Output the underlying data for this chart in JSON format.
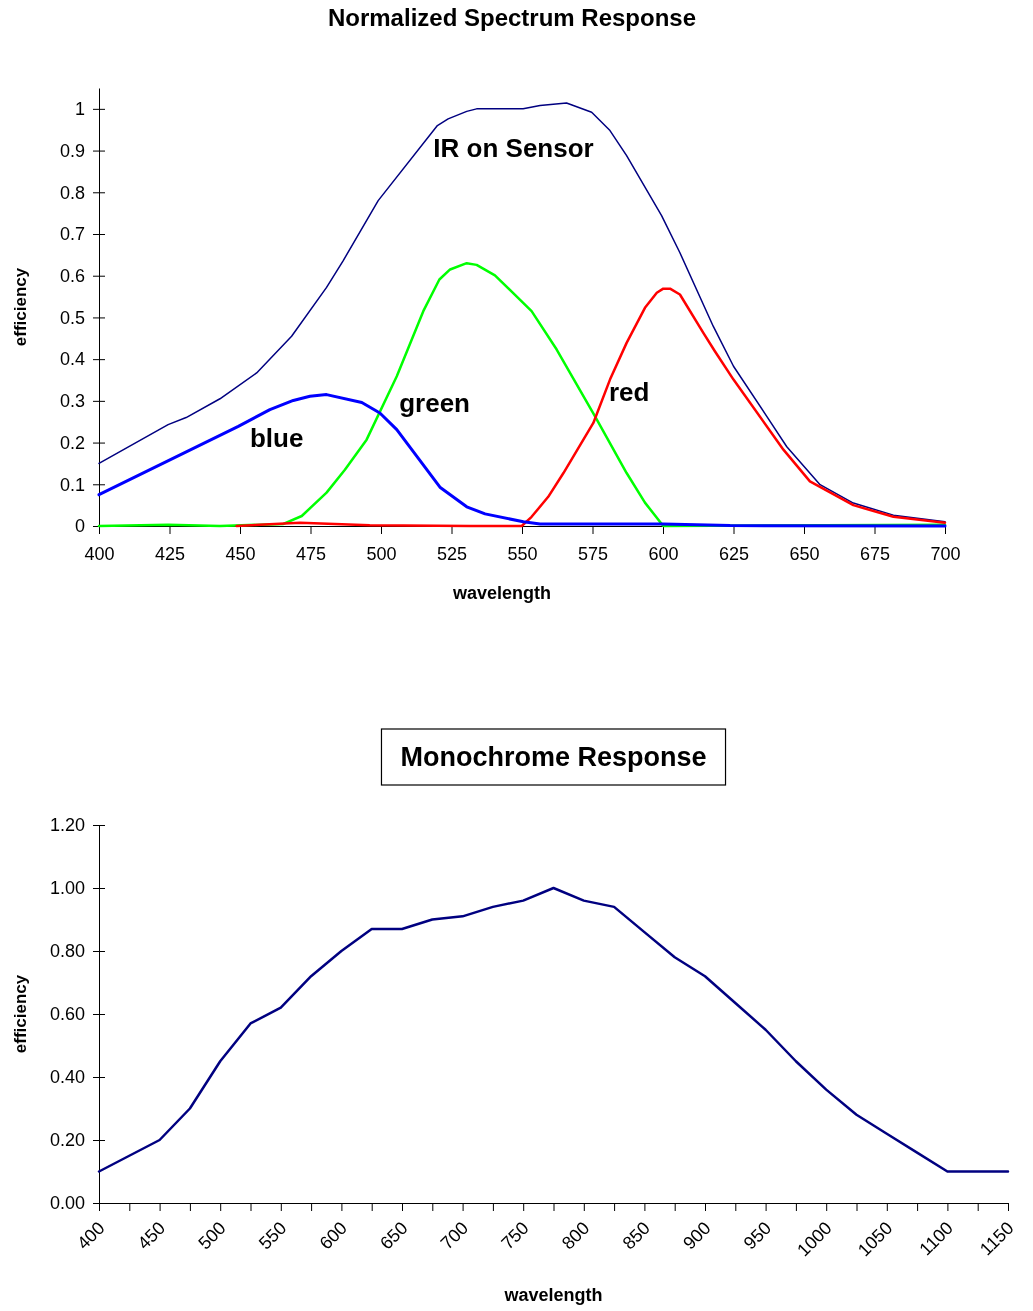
{
  "chart_data": [
    {
      "type": "line",
      "title": "Normalized Spectrum Response",
      "xlabel": "wavelength",
      "ylabel": "efficiency",
      "xlim": [
        400,
        700
      ],
      "xticks": [
        400,
        425,
        450,
        475,
        500,
        525,
        550,
        575,
        600,
        625,
        650,
        675,
        700
      ],
      "ylim": [
        0,
        1.05
      ],
      "yticks": [
        0,
        0.1,
        0.2,
        0.3,
        0.4,
        0.5,
        0.6,
        0.7,
        0.8,
        0.9,
        1
      ],
      "series": [
        {
          "name": "IR on Sensor",
          "color": "#000080",
          "x": [
            400,
            424.5,
            430.9,
            442.9,
            455.9,
            468.3,
            480.7,
            486.5,
            499,
            520,
            523.8,
            530.4,
            533.9,
            550.4,
            556.4,
            565.8,
            574.7,
            581.2,
            587.1,
            599.5,
            606,
            617.8,
            625,
            636.8,
            643.9,
            655.7,
            667.5,
            681.7,
            700
          ],
          "values": [
            0.15,
            0.243,
            0.26,
            0.305,
            0.367,
            0.455,
            0.572,
            0.635,
            0.78,
            0.96,
            0.976,
            0.994,
            1.0,
            1.0,
            1.008,
            1.014,
            0.992,
            0.948,
            0.888,
            0.744,
            0.655,
            0.479,
            0.383,
            0.263,
            0.19,
            0.099,
            0.055,
            0.026,
            0.01
          ]
        },
        {
          "name": "green",
          "color": "#00ff00",
          "x": [
            400,
            424.5,
            442.9,
            465.4,
            471.9,
            480.7,
            487.2,
            494.9,
            505.6,
            515,
            520.7,
            524.5,
            530.4,
            533.9,
            540.4,
            553.4,
            562.3,
            575.9,
            587.1,
            593.6,
            600.1,
            700
          ],
          "values": [
            0,
            0.003,
            0,
            0.005,
            0.024,
            0.08,
            0.135,
            0.207,
            0.359,
            0.515,
            0.591,
            0.615,
            0.63,
            0.626,
            0.601,
            0.515,
            0.423,
            0.263,
            0.127,
            0.056,
            0,
            0.003
          ]
        },
        {
          "name": "red",
          "color": "#ff0000",
          "x": [
            448.8,
            471.3,
            496,
            531.6,
            549.9,
            553.4,
            559.3,
            564.7,
            575.3,
            581.2,
            587.1,
            593.6,
            597.8,
            600.1,
            602.5,
            606,
            614.3,
            618.4,
            625,
            642.7,
            652.1,
            667.5,
            681.7,
            700
          ],
          "values": [
            0,
            0.008,
            0.002,
            0,
            0,
            0.022,
            0.07,
            0.127,
            0.247,
            0.351,
            0.439,
            0.523,
            0.559,
            0.569,
            0.569,
            0.555,
            0.463,
            0.419,
            0.351,
            0.183,
            0.107,
            0.05,
            0.022,
            0.008
          ]
        },
        {
          "name": "blue",
          "color": "#0000ff",
          "x": [
            400,
            449.4,
            460.6,
            468.9,
            474.8,
            480.7,
            493.2,
            499.6,
            505.6,
            520.9,
            530.4,
            536.9,
            550.5,
            556.4,
            600,
            623.8,
            700
          ],
          "values": [
            0.075,
            0.239,
            0.279,
            0.301,
            0.311,
            0.315,
            0.296,
            0.271,
            0.231,
            0.093,
            0.046,
            0.029,
            0.01,
            0.005,
            0.005,
            0.001,
            0
          ]
        }
      ]
    },
    {
      "type": "line",
      "title": "Monochrome Response",
      "xlabel": "wavelength",
      "ylabel": "efficiency",
      "xlim": [
        400,
        1150
      ],
      "xticks": [
        400,
        {
          "value": 425,
          "label": null
        },
        450,
        {
          "value": 475,
          "label": null
        },
        500,
        {
          "value": 525,
          "label": null
        },
        550,
        {
          "value": 575,
          "label": null
        },
        600,
        {
          "value": 625,
          "label": null
        },
        650,
        {
          "value": 675,
          "label": null
        },
        700,
        {
          "value": 725,
          "label": null
        },
        750,
        {
          "value": 775,
          "label": null
        },
        800,
        {
          "value": 825,
          "label": null
        },
        850,
        {
          "value": 875,
          "label": null
        },
        900,
        {
          "value": 925,
          "label": null
        },
        950,
        {
          "value": 975,
          "label": null
        },
        1000,
        {
          "value": 1025,
          "label": null
        },
        1050,
        {
          "value": 1075,
          "label": null
        },
        1100,
        {
          "value": 1125,
          "label": null
        },
        1150
      ],
      "ylim": [
        0,
        1.2
      ],
      "yticks": [
        {
          "value": 0,
          "label": "0.00"
        },
        {
          "value": 0.2,
          "label": "0.20"
        },
        {
          "value": 0.4,
          "label": "0.40"
        },
        {
          "value": 0.6,
          "label": "0.60"
        },
        {
          "value": 0.8,
          "label": "0.80"
        },
        {
          "value": 1,
          "label": "1.00"
        },
        {
          "value": 1.2,
          "label": "1.20"
        }
      ],
      "x": [
        400,
        425,
        450,
        475,
        500,
        525,
        550,
        575,
        600,
        625,
        650,
        675,
        700,
        725,
        750,
        775,
        800,
        825,
        850,
        875,
        900,
        925,
        950,
        975,
        1000,
        1025,
        1050,
        1075,
        1100,
        1125,
        1150
      ],
      "series": [
        {
          "color": "#000080",
          "values": [
            0.1,
            0.15,
            0.2,
            0.3,
            0.45,
            0.57,
            0.62,
            0.72,
            0.8,
            0.87,
            0.87,
            0.9,
            0.91,
            0.94,
            0.96,
            1.0,
            0.96,
            0.94,
            0.86,
            0.78,
            0.72,
            0.635,
            0.55,
            0.45,
            0.36,
            0.28,
            0.22,
            0.16,
            0.1,
            0.1,
            0.1
          ]
        }
      ]
    }
  ]
}
